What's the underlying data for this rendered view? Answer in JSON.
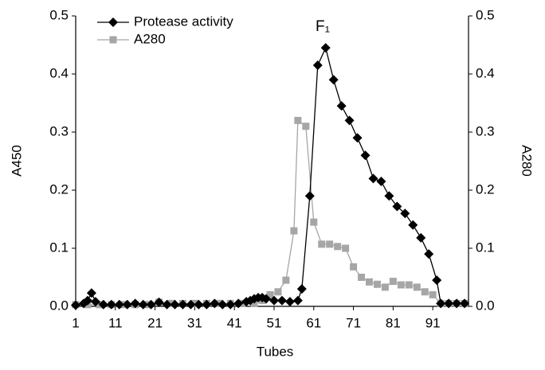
{
  "chart_data": {
    "type": "line",
    "xlabel": "Tubes",
    "ylabel": "A450",
    "y2label": "A280",
    "annotations": [
      "F₁"
    ],
    "xlim": [
      1,
      100
    ],
    "xticks": [
      1,
      11,
      21,
      31,
      41,
      51,
      61,
      71,
      81,
      91
    ],
    "ylim": [
      0,
      0.5
    ],
    "yticks": [
      {
        "value": 0,
        "label": "0.0"
      },
      0.1,
      0.2,
      0.3,
      0.4,
      0.5
    ],
    "y2lim": [
      0,
      0.5
    ],
    "y2ticks": [
      {
        "value": 0,
        "label": "0.0"
      },
      0.1,
      0.2,
      0.3,
      0.4,
      0.5
    ],
    "legend": "upper left",
    "series": [
      {
        "name": "Protease activity",
        "color": "#000000",
        "marker": "diamond",
        "axis": "y",
        "x": [
          1,
          3,
          4,
          5,
          6,
          8,
          10,
          12,
          14,
          16,
          18,
          20,
          22,
          24,
          26,
          28,
          30,
          32,
          34,
          36,
          38,
          40,
          42,
          44,
          45,
          46,
          47,
          48,
          49,
          51,
          53,
          55,
          57,
          58,
          60,
          62,
          64,
          66,
          68,
          70,
          72,
          74,
          76,
          78,
          80,
          82,
          84,
          86,
          88,
          90,
          92,
          93,
          95,
          97,
          99
        ],
        "values": [
          0.002,
          0.005,
          0.01,
          0.023,
          0.008,
          0.003,
          0.003,
          0.003,
          0.003,
          0.005,
          0.003,
          0.003,
          0.007,
          0.003,
          0.003,
          0.003,
          0.003,
          0.003,
          0.003,
          0.005,
          0.003,
          0.003,
          0.005,
          0.008,
          0.01,
          0.013,
          0.015,
          0.015,
          0.013,
          0.01,
          0.01,
          0.008,
          0.01,
          0.03,
          0.19,
          0.415,
          0.445,
          0.39,
          0.345,
          0.32,
          0.29,
          0.26,
          0.22,
          0.215,
          0.19,
          0.172,
          0.16,
          0.14,
          0.118,
          0.09,
          0.045,
          0.005,
          0.005,
          0.005,
          0.005
        ]
      },
      {
        "name": "A280",
        "color": "#a6a6a6",
        "marker": "square",
        "axis": "y2",
        "x": [
          1,
          4,
          7,
          10,
          13,
          16,
          19,
          22,
          25,
          28,
          31,
          34,
          37,
          40,
          43,
          46,
          48,
          50,
          52,
          54,
          56,
          57,
          59,
          61,
          63,
          65,
          67,
          69,
          71,
          73,
          75,
          77,
          79,
          81,
          83,
          85,
          87,
          89,
          91,
          93,
          95,
          97,
          99
        ],
        "values": [
          0.003,
          0.003,
          0.003,
          0.003,
          0.003,
          0.003,
          0.003,
          0.007,
          0.005,
          0.005,
          0.005,
          0.005,
          0.005,
          0.005,
          0.005,
          0.005,
          0.01,
          0.02,
          0.025,
          0.045,
          0.13,
          0.32,
          0.31,
          0.145,
          0.107,
          0.107,
          0.103,
          0.1,
          0.068,
          0.05,
          0.042,
          0.038,
          0.033,
          0.043,
          0.037,
          0.037,
          0.033,
          0.025,
          0.02,
          0.005,
          0.005,
          0.005,
          0.005
        ]
      }
    ]
  }
}
